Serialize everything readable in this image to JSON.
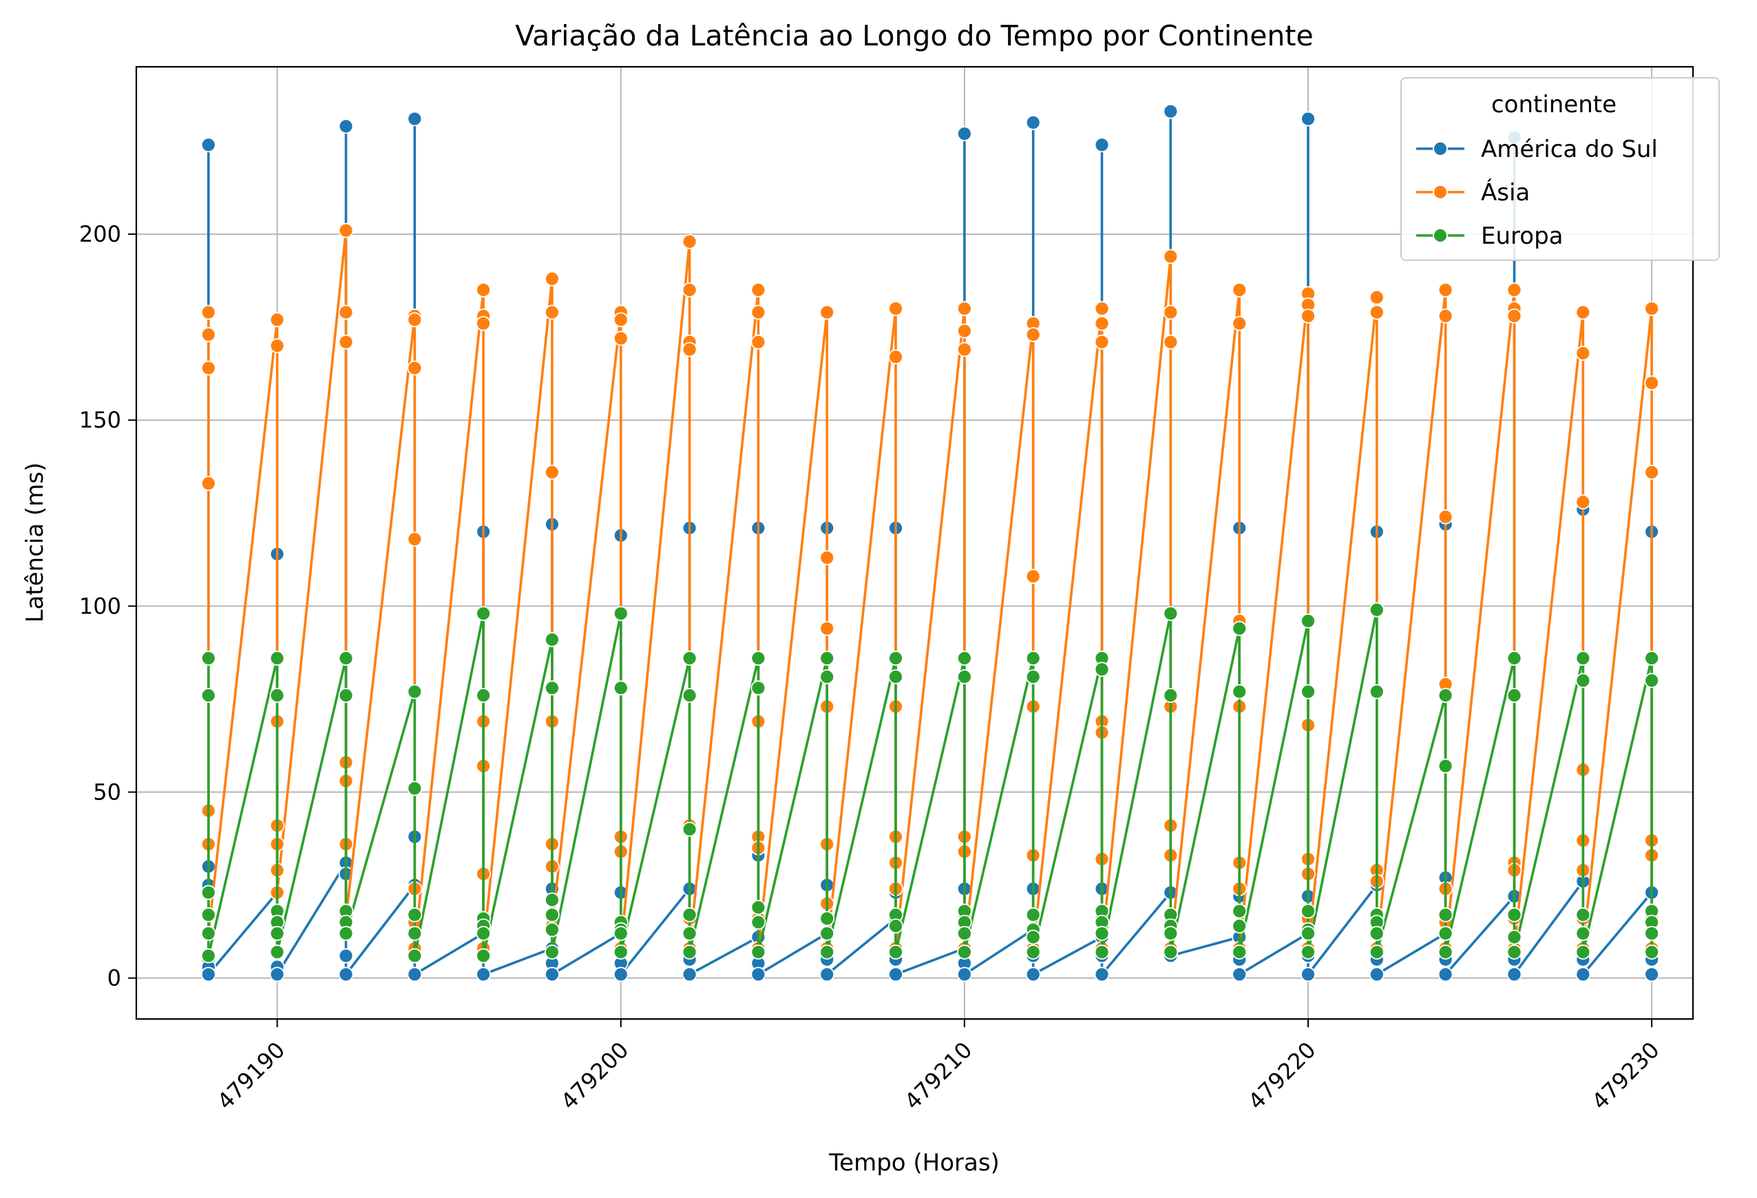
{
  "chart_data": {
    "type": "line",
    "title": "Variação da Latência ao Longo do Tempo por Continente",
    "xlabel": "Tempo (Horas)",
    "ylabel": "Latência (ms)",
    "xlim": [
      479185.9,
      479231.2
    ],
    "ylim": [
      -11,
      245
    ],
    "xticks": [
      479190,
      479200,
      479210,
      479220,
      479230
    ],
    "yticks": [
      0,
      50,
      100,
      150,
      200
    ],
    "grid": true,
    "legend": {
      "title": "continente",
      "placement": "top-right"
    },
    "x": [
      479188,
      479190,
      479192,
      479194,
      479196,
      479198,
      479200,
      479202,
      479204,
      479206,
      479208,
      479210,
      479212,
      479214,
      479216,
      479218,
      479220,
      479222,
      479224,
      479226,
      479228,
      479230
    ],
    "series": [
      {
        "name": "América do Sul",
        "color": "#1f77b4",
        "hour_values": [
          [
            12,
            224,
            30,
            25,
            5,
            3,
            1
          ],
          [
            23,
            114,
            3,
            1
          ],
          [
            31,
            229,
            28,
            6,
            1
          ],
          [
            25,
            231,
            38,
            6,
            1
          ],
          [
            12,
            120,
            6,
            1
          ],
          [
            8,
            122,
            24,
            4,
            1
          ],
          [
            12,
            119,
            34,
            23,
            4,
            1
          ],
          [
            24,
            121,
            5,
            1
          ],
          [
            11,
            121,
            33,
            4,
            1
          ],
          [
            12,
            121,
            25,
            5,
            1
          ],
          [
            16,
            121,
            23,
            5,
            1
          ],
          [
            8,
            227,
            24,
            4,
            1
          ],
          [
            13,
            230,
            24,
            6,
            1
          ],
          [
            11,
            224,
            24,
            6,
            1
          ],
          [
            23,
            233,
            12,
            6
          ],
          [
            11,
            121,
            22,
            5,
            1
          ],
          [
            12,
            231,
            22,
            6,
            1
          ],
          [
            25,
            120,
            12,
            5,
            1
          ],
          [
            12,
            122,
            27,
            5,
            1
          ],
          [
            22,
            226,
            11,
            5,
            1
          ],
          [
            26,
            126,
            12,
            5,
            1
          ],
          [
            23,
            120,
            12,
            5,
            1
          ]
        ]
      },
      {
        "name": "Ásia",
        "color": "#ff7f0e",
        "hour_values": [
          [
            179,
            173,
            164,
            133,
            45,
            36,
            23,
            12
          ],
          [
            177,
            170,
            69,
            41,
            36,
            29,
            23
          ],
          [
            201,
            179,
            171,
            58,
            53,
            36,
            16
          ],
          [
            178,
            177,
            164,
            118,
            24,
            15,
            8
          ],
          [
            185,
            178,
            176,
            69,
            57,
            28,
            15,
            8
          ],
          [
            188,
            179,
            136,
            69,
            36,
            30,
            14
          ],
          [
            179,
            177,
            172,
            38,
            34,
            15,
            8
          ],
          [
            198,
            185,
            171,
            169,
            41,
            16,
            8
          ],
          [
            185,
            179,
            171,
            69,
            38,
            35,
            16,
            8
          ],
          [
            179,
            113,
            94,
            73,
            36,
            20,
            8
          ],
          [
            180,
            167,
            73,
            38,
            31,
            24,
            8
          ],
          [
            180,
            174,
            169,
            38,
            34,
            17,
            8
          ],
          [
            176,
            173,
            108,
            73,
            33,
            13,
            8
          ],
          [
            180,
            176,
            171,
            69,
            66,
            32,
            16,
            8
          ],
          [
            194,
            179,
            171,
            73,
            41,
            33,
            16,
            8
          ],
          [
            185,
            176,
            96,
            73,
            31,
            24,
            8
          ],
          [
            184,
            181,
            178,
            68,
            32,
            28,
            16,
            8
          ],
          [
            183,
            179,
            29,
            26,
            16,
            8
          ],
          [
            185,
            178,
            124,
            79,
            24,
            15,
            8
          ],
          [
            185,
            180,
            178,
            86,
            31,
            29,
            16,
            8
          ],
          [
            179,
            168,
            128,
            56,
            37,
            29,
            16,
            8
          ],
          [
            180,
            160,
            136,
            37,
            33,
            16,
            8
          ]
        ]
      },
      {
        "name": "Europa",
        "color": "#2ca02c",
        "hour_values": [
          [
            86,
            76,
            23,
            17,
            12,
            6
          ],
          [
            86,
            76,
            18,
            15,
            12,
            7
          ],
          [
            86,
            76,
            18,
            15,
            12
          ],
          [
            77,
            51,
            17,
            12,
            6
          ],
          [
            98,
            76,
            16,
            14,
            12,
            6
          ],
          [
            91,
            78,
            21,
            17,
            13,
            7
          ],
          [
            98,
            78,
            15,
            13,
            12,
            7
          ],
          [
            86,
            76,
            40,
            17,
            12,
            7
          ],
          [
            86,
            78,
            19,
            15,
            7
          ],
          [
            86,
            81,
            16,
            12,
            7
          ],
          [
            86,
            81,
            17,
            14,
            7
          ],
          [
            86,
            81,
            18,
            15,
            12,
            7
          ],
          [
            86,
            81,
            17,
            13,
            11,
            7
          ],
          [
            86,
            83,
            18,
            15,
            12,
            7
          ],
          [
            98,
            76,
            17,
            14,
            12,
            7
          ],
          [
            94,
            77,
            18,
            14,
            7
          ],
          [
            96,
            77,
            18,
            13,
            12,
            7
          ],
          [
            99,
            77,
            17,
            15,
            12,
            7
          ],
          [
            76,
            57,
            17,
            12,
            7
          ],
          [
            86,
            76,
            17,
            11,
            7
          ],
          [
            86,
            80,
            17,
            12,
            7
          ],
          [
            86,
            80,
            18,
            15,
            12,
            7
          ]
        ]
      }
    ]
  }
}
